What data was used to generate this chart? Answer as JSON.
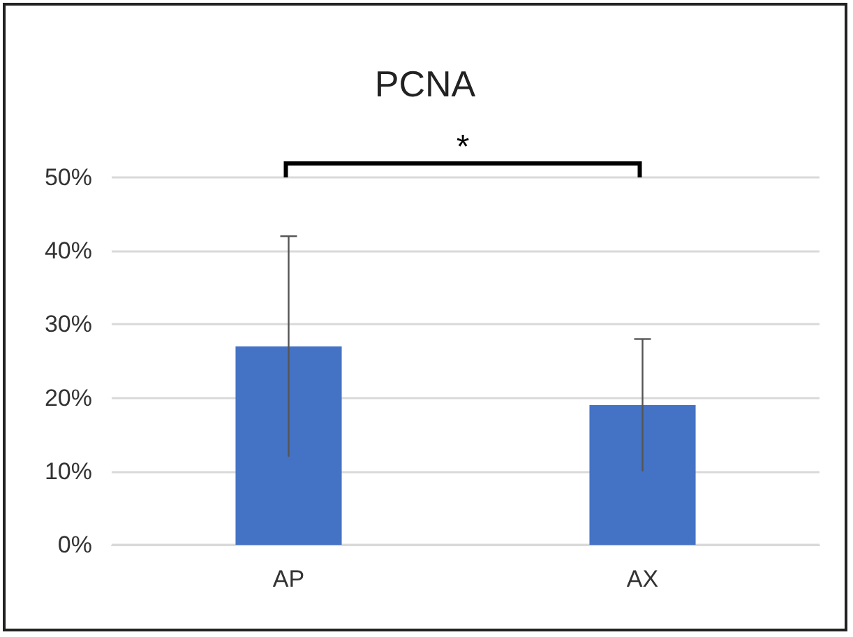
{
  "chart_data": {
    "type": "bar",
    "title": "PCNA",
    "categories": [
      "AP",
      "AX"
    ],
    "values": [
      27,
      19
    ],
    "errors": [
      15,
      9
    ],
    "color": "#4472c4",
    "ylim": [
      0,
      50
    ],
    "yticks": [
      {
        "value": 0,
        "label": "0%"
      },
      {
        "value": 10,
        "label": "10%"
      },
      {
        "value": 20,
        "label": "20%"
      },
      {
        "value": 30,
        "label": "30%"
      },
      {
        "value": 40,
        "label": "40%"
      },
      {
        "value": 50,
        "label": "50%"
      }
    ],
    "grid": "y",
    "annotations": [
      "*"
    ]
  }
}
